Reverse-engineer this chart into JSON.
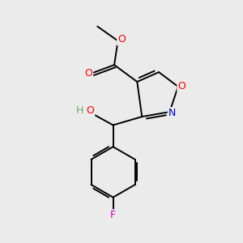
{
  "background_color": "#ebebeb",
  "bond_color": "#000000",
  "atom_colors": {
    "O": "#ff0000",
    "N": "#0000cd",
    "F": "#cc00cc",
    "C": "#000000",
    "H": "#6aaa6a"
  },
  "figsize": [
    3.0,
    3.0
  ],
  "dpi": 100,
  "lw": 1.4
}
